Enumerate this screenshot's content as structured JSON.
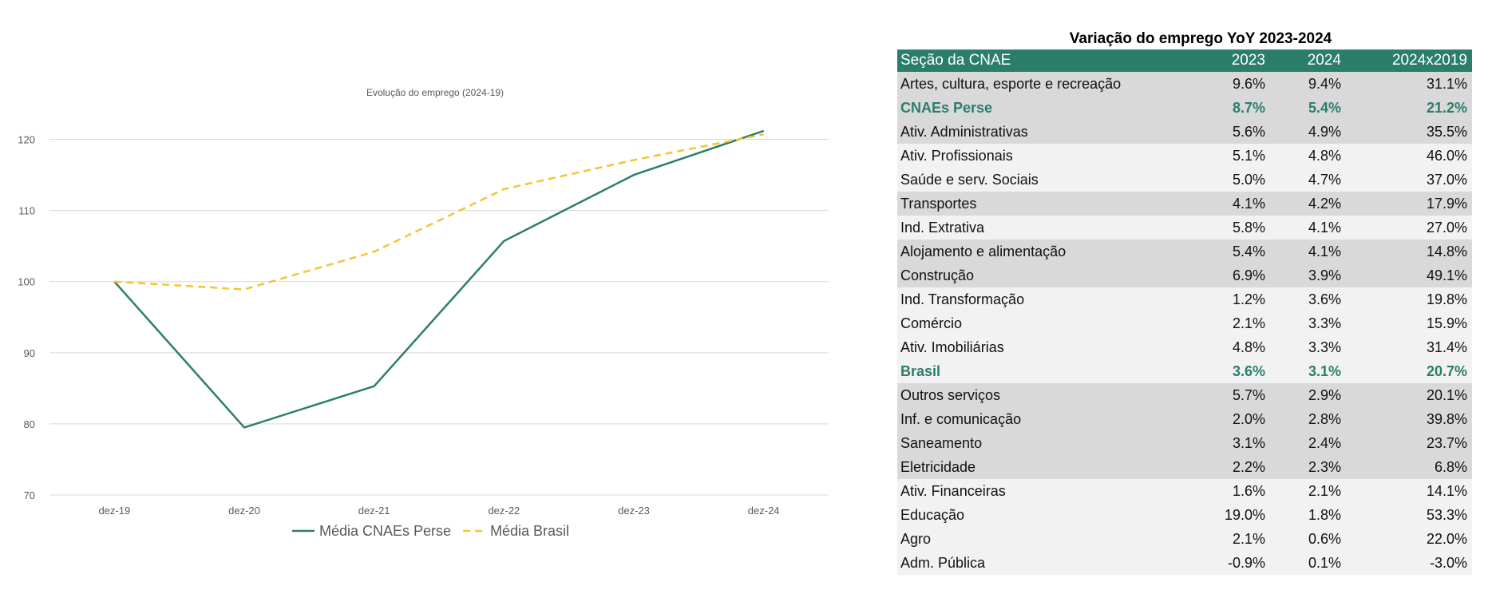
{
  "chart_data": {
    "type": "line",
    "title": "Evolução do emprego (2024-19)",
    "categories": [
      "dez-19",
      "dez-20",
      "dez-21",
      "dez-22",
      "dez-23",
      "dez-24"
    ],
    "yticks": [
      70,
      80,
      90,
      100,
      110,
      120
    ],
    "ylim": [
      70,
      125
    ],
    "grid": true,
    "legend_position": "bottom",
    "series": [
      {
        "name": "Média CNAEs Perse",
        "values": [
          100,
          79.5,
          85.3,
          105.7,
          115,
          121.2
        ],
        "color": "#2b7e6c",
        "dash": "solid"
      },
      {
        "name": "Média Brasil",
        "values": [
          100,
          98.9,
          104.2,
          113,
          117.1,
          120.7
        ],
        "color": "#f5c431",
        "dash": "dashed"
      }
    ]
  },
  "table": {
    "title": "Variação do emprego YoY 2023-2024",
    "headers": [
      "Seção da CNAE",
      "2023",
      "2024",
      "2024x2019"
    ],
    "rows": [
      {
        "name": "Artes, cultura, esporte e recreação",
        "v2023": "9.6%",
        "v2024": "9.4%",
        "v2419": "31.1%",
        "shade": "dark",
        "highlight": false
      },
      {
        "name": "CNAEs Perse",
        "v2023": "8.7%",
        "v2024": "5.4%",
        "v2419": "21.2%",
        "shade": "dark",
        "highlight": true
      },
      {
        "name": "Ativ. Administrativas",
        "v2023": "5.6%",
        "v2024": "4.9%",
        "v2419": "35.5%",
        "shade": "dark",
        "highlight": false
      },
      {
        "name": "Ativ. Profissionais",
        "v2023": "5.1%",
        "v2024": "4.8%",
        "v2419": "46.0%",
        "shade": "light",
        "highlight": false
      },
      {
        "name": "Saúde e serv. Sociais",
        "v2023": "5.0%",
        "v2024": "4.7%",
        "v2419": "37.0%",
        "shade": "light",
        "highlight": false
      },
      {
        "name": "Transportes",
        "v2023": "4.1%",
        "v2024": "4.2%",
        "v2419": "17.9%",
        "shade": "dark",
        "highlight": false
      },
      {
        "name": "Ind. Extrativa",
        "v2023": "5.8%",
        "v2024": "4.1%",
        "v2419": "27.0%",
        "shade": "light",
        "highlight": false
      },
      {
        "name": "Alojamento e alimentação",
        "v2023": "5.4%",
        "v2024": "4.1%",
        "v2419": "14.8%",
        "shade": "dark",
        "highlight": false
      },
      {
        "name": "Construção",
        "v2023": "6.9%",
        "v2024": "3.9%",
        "v2419": "49.1%",
        "shade": "dark",
        "highlight": false
      },
      {
        "name": "Ind. Transformação",
        "v2023": "1.2%",
        "v2024": "3.6%",
        "v2419": "19.8%",
        "shade": "light",
        "highlight": false
      },
      {
        "name": "Comércio",
        "v2023": "2.1%",
        "v2024": "3.3%",
        "v2419": "15.9%",
        "shade": "light",
        "highlight": false
      },
      {
        "name": "Ativ. Imobiliárias",
        "v2023": "4.8%",
        "v2024": "3.3%",
        "v2419": "31.4%",
        "shade": "light",
        "highlight": false
      },
      {
        "name": "Brasil",
        "v2023": "3.6%",
        "v2024": "3.1%",
        "v2419": "20.7%",
        "shade": "light",
        "highlight": true
      },
      {
        "name": "Outros serviços",
        "v2023": "5.7%",
        "v2024": "2.9%",
        "v2419": "20.1%",
        "shade": "dark",
        "highlight": false
      },
      {
        "name": "Inf. e comunicação",
        "v2023": "2.0%",
        "v2024": "2.8%",
        "v2419": "39.8%",
        "shade": "dark",
        "highlight": false
      },
      {
        "name": "Saneamento",
        "v2023": "3.1%",
        "v2024": "2.4%",
        "v2419": "23.7%",
        "shade": "dark",
        "highlight": false
      },
      {
        "name": "Eletricidade",
        "v2023": "2.2%",
        "v2024": "2.3%",
        "v2419": "6.8%",
        "shade": "dark",
        "highlight": false
      },
      {
        "name": "Ativ. Financeiras",
        "v2023": "1.6%",
        "v2024": "2.1%",
        "v2419": "14.1%",
        "shade": "light",
        "highlight": false
      },
      {
        "name": "Educação",
        "v2023": "19.0%",
        "v2024": "1.8%",
        "v2419": "53.3%",
        "shade": "light",
        "highlight": false
      },
      {
        "name": "Agro",
        "v2023": "2.1%",
        "v2024": "0.6%",
        "v2419": "22.0%",
        "shade": "light",
        "highlight": false
      },
      {
        "name": "Adm. Pública",
        "v2023": "-0.9%",
        "v2024": "0.1%",
        "v2419": "-3.0%",
        "shade": "light",
        "highlight": false
      }
    ],
    "colors": {
      "header_bg": "#2b7e6c",
      "dark_row": "#d9d9d9",
      "light_row": "#f2f2f2",
      "highlight_text": "#2b7e6c"
    }
  }
}
